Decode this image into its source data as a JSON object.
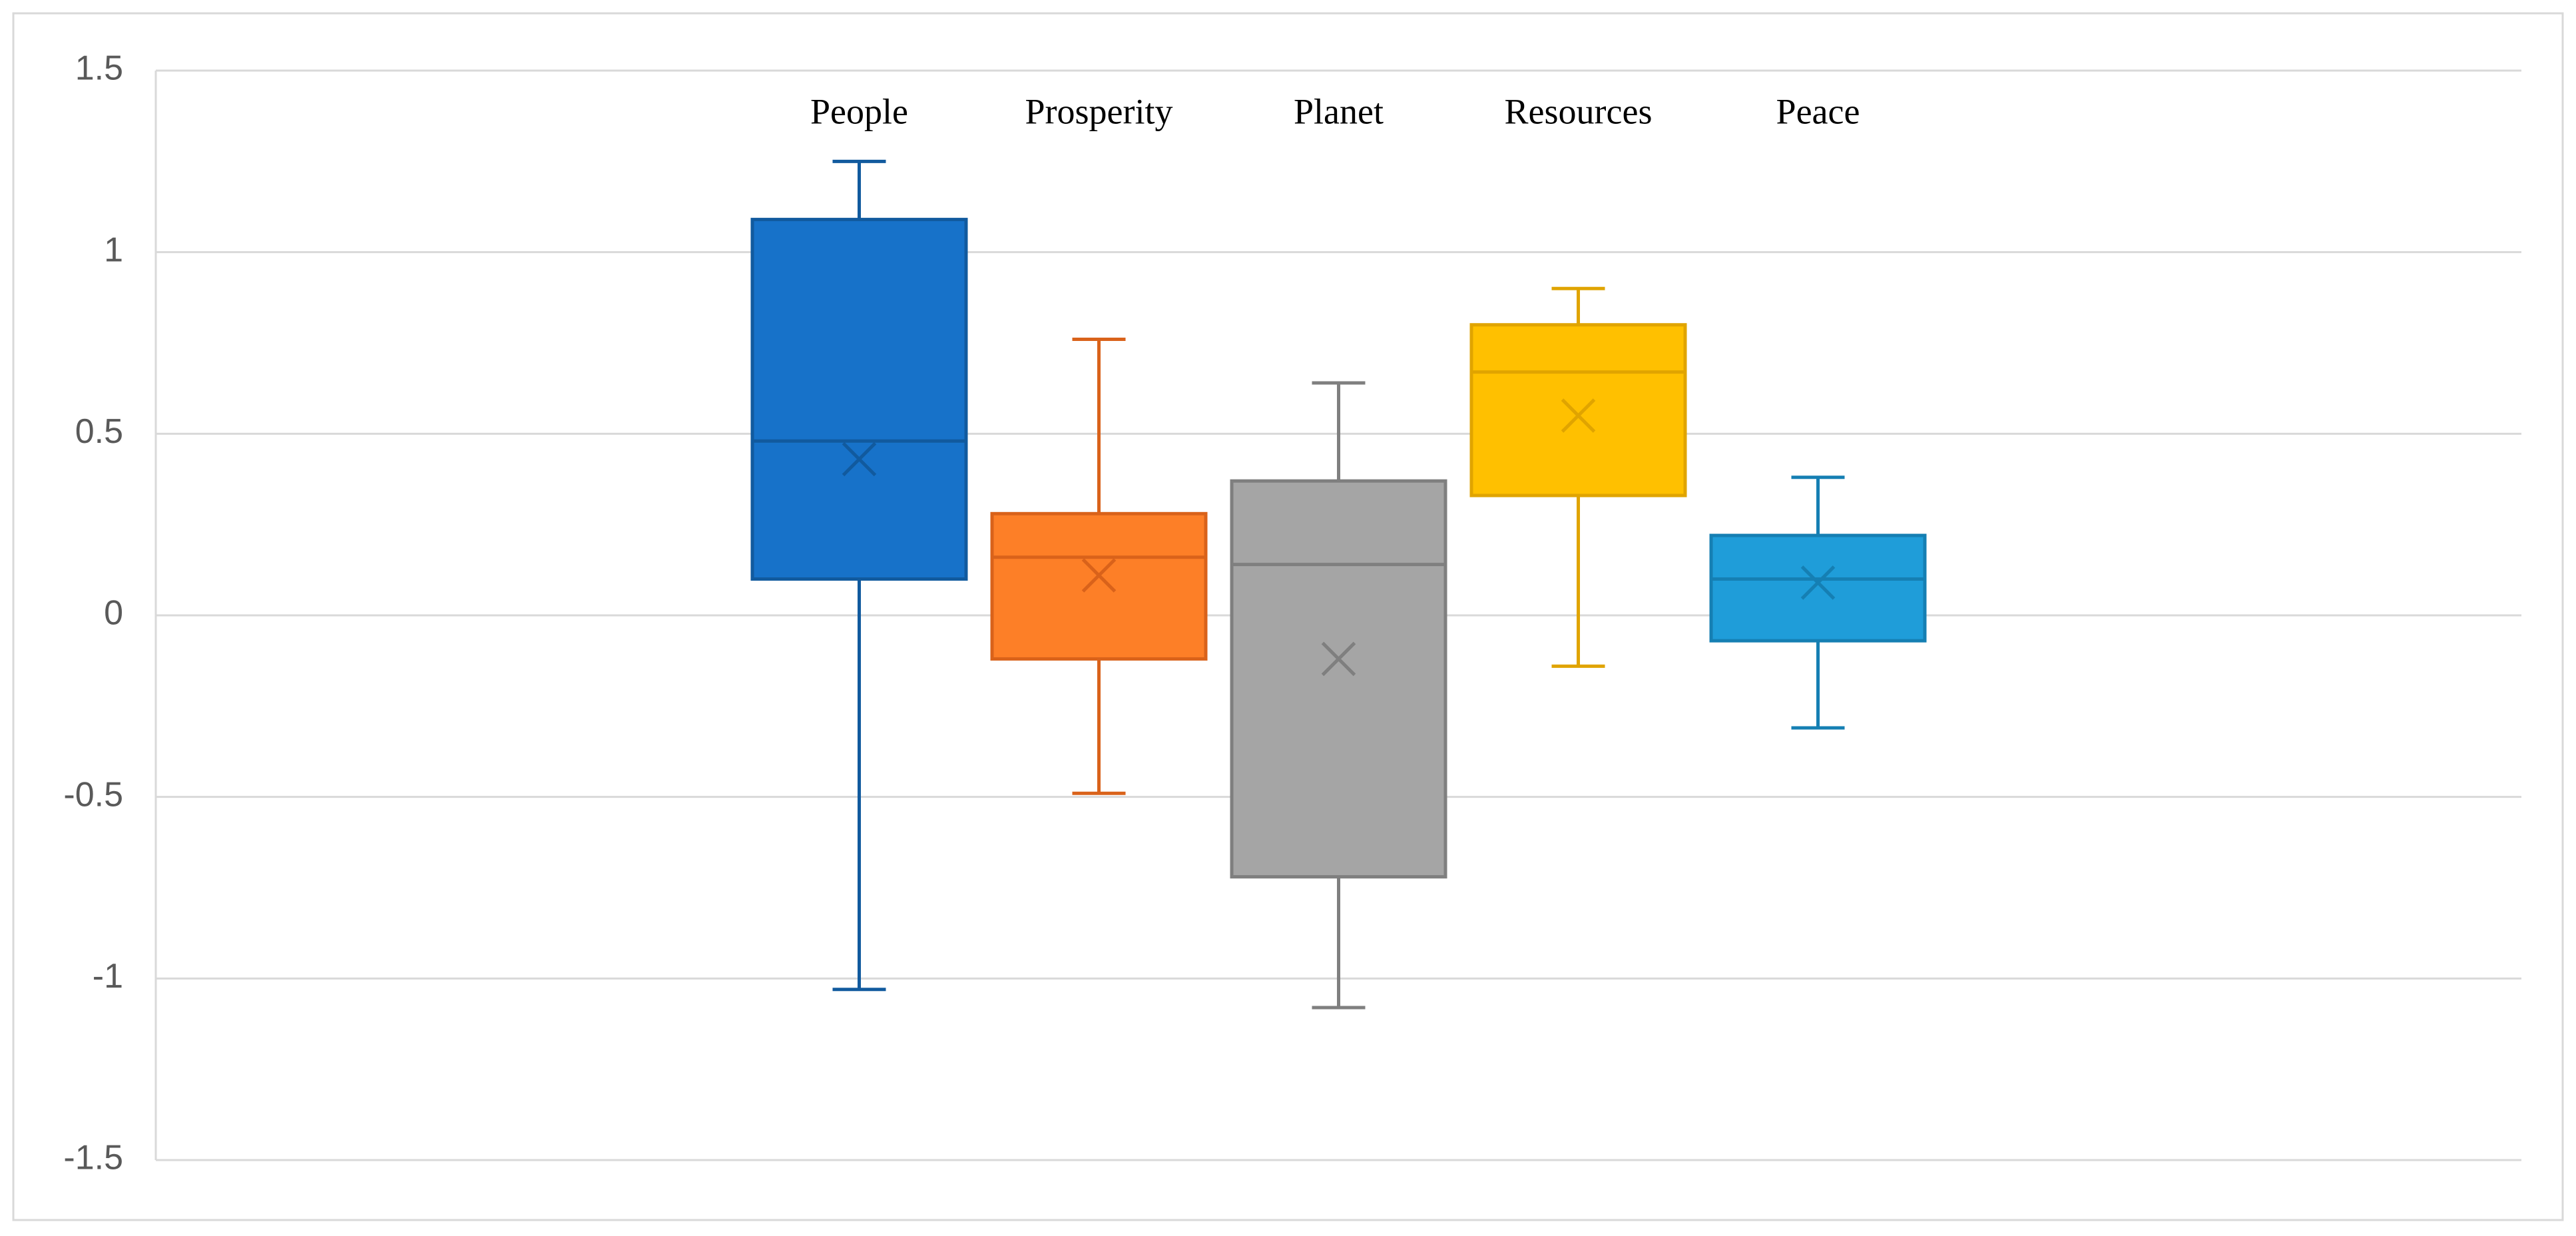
{
  "chart_data": {
    "type": "box",
    "series": [
      {
        "name": "People",
        "color": "#1772c9",
        "stroke": "#115a9e",
        "whisker_low": -1.03,
        "q1": 0.1,
        "median": 0.48,
        "q3": 1.09,
        "whisker_high": 1.25,
        "mean": 0.43
      },
      {
        "name": "Prosperity",
        "color": "#fd7f27",
        "stroke": "#d9621a",
        "whisker_low": -0.49,
        "q1": -0.12,
        "median": 0.16,
        "q3": 0.28,
        "whisker_high": 0.76,
        "mean": 0.11
      },
      {
        "name": "Planet",
        "color": "#a5a5a5",
        "stroke": "#7f7f7f",
        "whisker_low": -1.08,
        "q1": -0.72,
        "median": 0.14,
        "q3": 0.37,
        "whisker_high": 0.64,
        "mean": -0.12
      },
      {
        "name": "Resources",
        "color": "#ffc000",
        "stroke": "#e0a400",
        "whisker_low": -0.14,
        "q1": 0.33,
        "median": 0.67,
        "q3": 0.8,
        "whisker_high": 0.9,
        "mean": 0.55
      },
      {
        "name": "Peace",
        "color": "#1f9dd9",
        "stroke": "#157fb3",
        "whisker_low": -0.31,
        "q1": -0.07,
        "median": 0.1,
        "q3": 0.22,
        "whisker_high": 0.38,
        "mean": 0.09
      }
    ],
    "ylim": [
      -1.5,
      1.5
    ],
    "yticks": [
      -1.5,
      -1,
      -0.5,
      0,
      0.5,
      1,
      1.5
    ],
    "grid": true
  }
}
